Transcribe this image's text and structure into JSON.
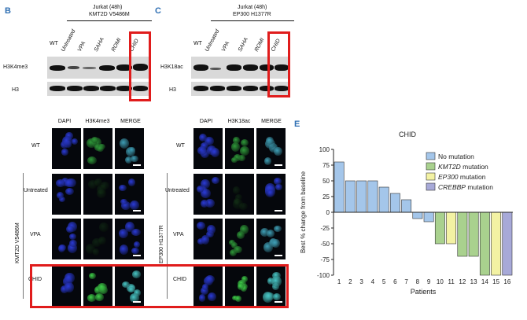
{
  "panelB": {
    "letter": "B",
    "title_line1": "Jurkat (48h)",
    "title_line2": "KMT2D V5486M",
    "lanes": [
      "WT",
      "Untreated",
      "VPA",
      "SAHA",
      "ROMI",
      "CHID"
    ],
    "row1": "H3K4me3",
    "row2": "H3"
  },
  "panelC": {
    "letter": "C",
    "title_line1": "Jurkat (48h)",
    "title_line2": "EP300 H1377R",
    "lanes": [
      "WT",
      "Untreated",
      "VPA",
      "SAHA",
      "ROMI",
      "CHID"
    ],
    "row1": "H3K18ac",
    "row2": "H3"
  },
  "panelD": {
    "cols": [
      "DAPI",
      "H3K4me3",
      "MERGE"
    ],
    "rows": [
      "WT",
      "Untreated",
      "VPA",
      "CHID"
    ],
    "side_label": "KMT2D V5486M"
  },
  "panelD2": {
    "cols": [
      "DAPI",
      "H3K18ac",
      "MERGE"
    ],
    "rows": [
      "WT",
      "Untreated",
      "VPA",
      "CHID"
    ],
    "side_label": "EP300 H1377R"
  },
  "panelE": {
    "letter": "E",
    "colors": {
      "none": "#a4c6ea",
      "kmt2d": "#a9d18e",
      "ep300": "#f3f2a3",
      "crebbp": "#a7a9d8"
    },
    "legend": [
      {
        "key": "none",
        "prefix": "No mutation",
        "gene": "",
        "suffix": ""
      },
      {
        "key": "kmt2d",
        "prefix": "",
        "gene": "KMT2D",
        "suffix": " mutation"
      },
      {
        "key": "ep300",
        "prefix": "",
        "gene": "EP300",
        "suffix": " mutation"
      },
      {
        "key": "crebbp",
        "prefix": "",
        "gene": "CREBBP",
        "suffix": " mutation"
      }
    ]
  },
  "chart_data": {
    "type": "bar",
    "title": "CHID",
    "xlabel": "Patients",
    "ylabel": "Best % change from baseline",
    "ylim": [
      -100,
      100
    ],
    "yticks": [
      100,
      75,
      50,
      25,
      0,
      -25,
      -50,
      -75,
      -100
    ],
    "categories": [
      "1",
      "2",
      "3",
      "4",
      "5",
      "6",
      "7",
      "8",
      "9",
      "10",
      "11",
      "12",
      "13",
      "14",
      "15",
      "16"
    ],
    "values": [
      80,
      50,
      50,
      50,
      40,
      30,
      20,
      -10,
      -15,
      -50,
      -50,
      -70,
      -70,
      -100,
      -100,
      -100
    ],
    "groups": [
      "none",
      "none",
      "none",
      "none",
      "none",
      "none",
      "none",
      "none",
      "none",
      "kmt2d",
      "ep300",
      "kmt2d",
      "kmt2d",
      "kmt2d",
      "ep300",
      "crebbp"
    ]
  }
}
